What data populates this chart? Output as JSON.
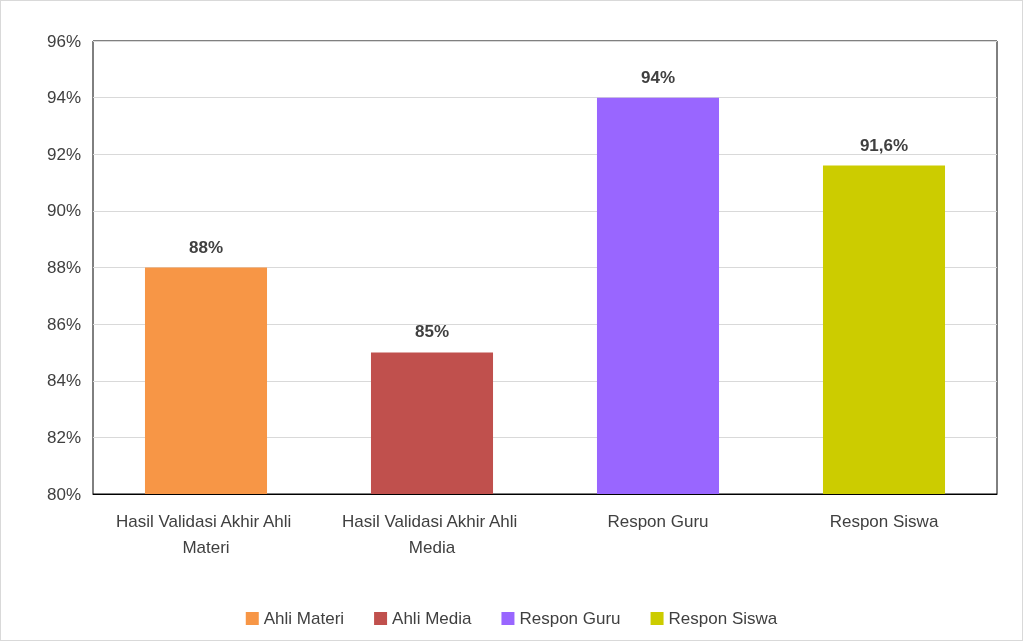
{
  "chart_data": {
    "type": "bar",
    "categories": [
      "Hasil Validasi Akhir Ahli Materi",
      "Hasil Validasi Akhir Ahli Media",
      "Respon Guru",
      "Respon Siswa"
    ],
    "series": [
      {
        "name": "Ahli Materi",
        "color": "#f79646",
        "values": [
          88,
          null,
          null,
          null
        ],
        "value_labels": [
          "88%",
          null,
          null,
          null
        ]
      },
      {
        "name": "Ahli Media",
        "color": "#c0504d",
        "values": [
          null,
          85,
          null,
          null
        ],
        "value_labels": [
          null,
          "85%",
          null,
          null
        ]
      },
      {
        "name": "Respon Guru",
        "color": "#9966ff",
        "values": [
          null,
          null,
          94,
          null
        ],
        "value_labels": [
          null,
          null,
          "94%",
          null
        ]
      },
      {
        "name": "Respon Siswa",
        "color": "#cccc00",
        "values": [
          null,
          null,
          null,
          91.6
        ],
        "value_labels": [
          null,
          null,
          null,
          "91,6%"
        ]
      }
    ],
    "ylim": [
      80,
      96
    ],
    "yticks": [
      {
        "value": 80,
        "label": "80%"
      },
      {
        "value": 82,
        "label": "82%"
      },
      {
        "value": 84,
        "label": "84%"
      },
      {
        "value": 86,
        "label": "86%"
      },
      {
        "value": 88,
        "label": "88%"
      },
      {
        "value": 90,
        "label": "90%"
      },
      {
        "value": 92,
        "label": "92%"
      },
      {
        "value": 94,
        "label": "94%"
      },
      {
        "value": 96,
        "label": "96%"
      }
    ],
    "grid": "y",
    "legend": "bottom"
  }
}
